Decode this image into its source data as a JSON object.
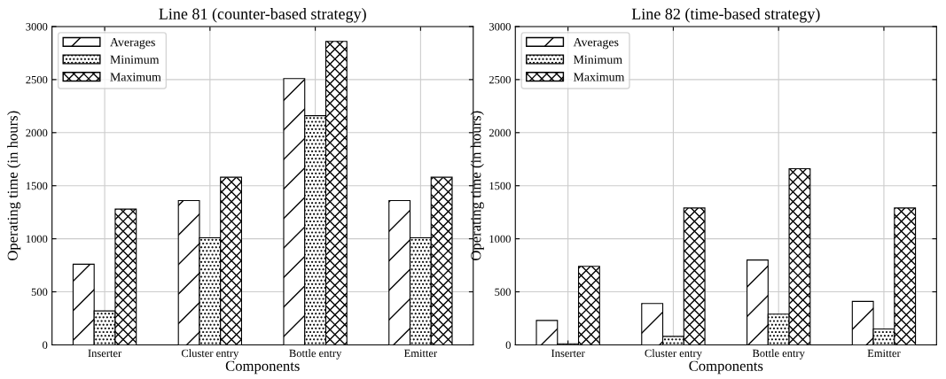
{
  "chart_data": [
    {
      "type": "bar",
      "title": "Line 81 (counter-based strategy)",
      "xlabel": "Components",
      "ylabel": "Operating time (in hours)",
      "categories": [
        "Inserter",
        "Cluster entry",
        "Bottle entry",
        "Emitter"
      ],
      "series": [
        {
          "name": "Averages",
          "color": "#000000",
          "values": [
            760,
            1360,
            2510,
            1360
          ]
        },
        {
          "name": "Minimum",
          "color": "#000000",
          "values": [
            320,
            1010,
            2160,
            1010
          ]
        },
        {
          "name": "Maximum",
          "color": "#000000",
          "values": [
            1280,
            1580,
            2860,
            1580
          ]
        }
      ],
      "ylim": [
        0,
        3000
      ],
      "yticks": [
        0,
        500,
        1000,
        1500,
        2000,
        2500,
        3000
      ],
      "grid": true,
      "legend": "top left"
    },
    {
      "type": "bar",
      "title": "Line 82 (time-based strategy)",
      "xlabel": "Components",
      "ylabel": "Operating time (in hours)",
      "categories": [
        "Inserter",
        "Cluster entry",
        "Bottle entry",
        "Emitter"
      ],
      "series": [
        {
          "name": "Averages",
          "color": "#000000",
          "values": [
            230,
            390,
            800,
            410
          ]
        },
        {
          "name": "Minimum",
          "color": "#000000",
          "values": [
            10,
            80,
            290,
            150
          ]
        },
        {
          "name": "Maximum",
          "color": "#000000",
          "values": [
            740,
            1290,
            1660,
            1290
          ]
        }
      ],
      "ylim": [
        0,
        3000
      ],
      "yticks": [
        0,
        500,
        1000,
        1500,
        2000,
        2500,
        3000
      ],
      "grid": true,
      "legend": "top left"
    }
  ]
}
